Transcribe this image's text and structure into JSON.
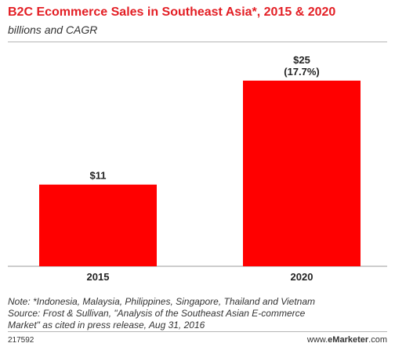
{
  "header": {
    "title": "B2C Ecommerce Sales in Southeast Asia*, 2015 & 2020",
    "subtitle": "billions and CAGR"
  },
  "chart_data": {
    "type": "bar",
    "categories": [
      "2015",
      "2020"
    ],
    "values": [
      11,
      25
    ],
    "data_labels": [
      "$11",
      "$25"
    ],
    "cagr_label": "(17.7%)",
    "title": "B2C Ecommerce Sales in Southeast Asia*, 2015 & 2020",
    "subtitle": "billions and CAGR",
    "xlabel": "",
    "ylabel": "",
    "ylim": [
      0,
      27
    ],
    "grid": false,
    "bar_color": "#ff0000"
  },
  "footer": {
    "note_line1": "Note: *Indonesia, Malaysia, Philippines, Singapore, Thailand and Vietnam",
    "note_line2": "Source: Frost & Sullivan, \"Analysis of the Southeast Asian E-commerce",
    "note_line3": "Market\" as cited in press release, Aug 31, 2016",
    "chart_id": "217592",
    "brand_prefix": "www.",
    "brand_name": "eMarketer",
    "brand_suffix": ".com"
  }
}
